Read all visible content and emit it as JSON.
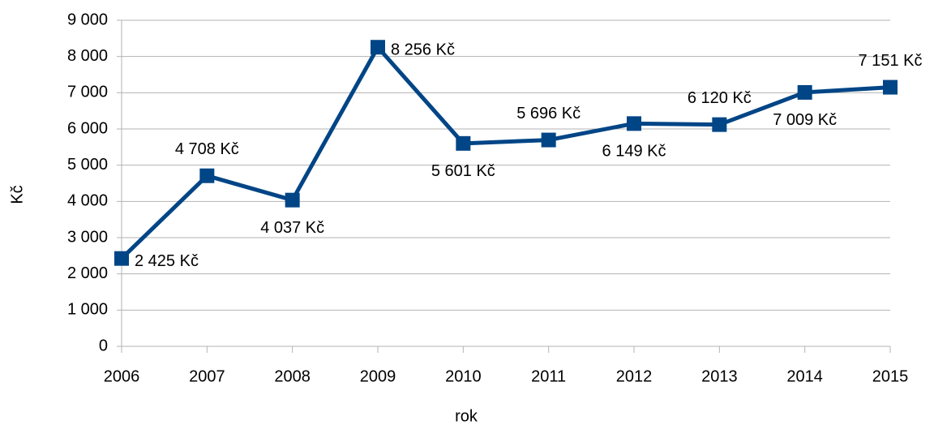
{
  "chart_data": {
    "type": "line",
    "xlabel": "rok",
    "ylabel": "Kč",
    "categories": [
      "2006",
      "2007",
      "2008",
      "2009",
      "2010",
      "2011",
      "2012",
      "2013",
      "2014",
      "2015"
    ],
    "series": [
      {
        "name": "Kč",
        "color": "#004586",
        "values": [
          2425,
          4708,
          4037,
          8256,
          5601,
          5696,
          6149,
          6120,
          7009,
          7151
        ],
        "value_labels": [
          "2 425 Kč",
          "4 708 Kč",
          "4 037 Kč",
          "8 256 Kč",
          "5 601 Kč",
          "5 696 Kč",
          "6 149 Kč",
          "6 120 Kč",
          "7 009 Kč",
          "7 151 Kč"
        ]
      }
    ],
    "ylim": [
      0,
      9000
    ],
    "yticks": [
      0,
      {
        "value": 1000,
        "label": "1 000"
      },
      {
        "value": 2000,
        "label": "2 000"
      },
      {
        "value": 3000,
        "label": "3 000"
      },
      {
        "value": 4000,
        "label": "4 000"
      },
      {
        "value": 5000,
        "label": "5 000"
      },
      {
        "value": 6000,
        "label": "6 000"
      },
      {
        "value": 7000,
        "label": "7 000"
      },
      {
        "value": 8000,
        "label": "8 000"
      },
      {
        "value": 9000,
        "label": "9 000"
      }
    ],
    "grid": true
  }
}
